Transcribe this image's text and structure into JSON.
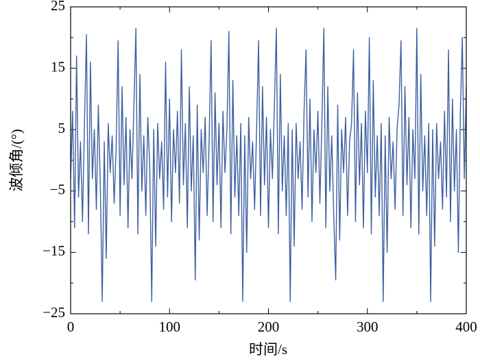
{
  "chart_data": {
    "type": "line",
    "xlabel": "时间/s",
    "ylabel": "波倾角/(°)",
    "x": [
      0,
      2,
      4,
      6,
      8,
      10,
      12,
      14,
      16,
      18,
      20,
      22,
      24,
      26,
      28,
      30,
      32,
      34,
      36,
      38,
      40,
      42,
      44,
      46,
      48,
      50,
      52,
      54,
      56,
      58,
      60,
      62,
      64,
      66,
      68,
      70,
      72,
      74,
      76,
      78,
      80,
      82,
      84,
      86,
      88,
      90,
      92,
      94,
      96,
      98,
      100,
      102,
      104,
      106,
      108,
      110,
      112,
      114,
      116,
      118,
      120,
      122,
      124,
      126,
      128,
      130,
      132,
      134,
      136,
      138,
      140,
      142,
      144,
      146,
      148,
      150,
      152,
      154,
      156,
      158,
      160,
      162,
      164,
      166,
      168,
      170,
      172,
      174,
      176,
      178,
      180,
      182,
      184,
      186,
      188,
      190,
      192,
      194,
      196,
      198,
      200,
      202,
      204,
      206,
      208,
      210,
      212,
      214,
      216,
      218,
      220,
      222,
      224,
      226,
      228,
      230,
      232,
      234,
      236,
      238,
      240,
      242,
      244,
      246,
      248,
      250,
      252,
      254,
      256,
      258,
      260,
      262,
      264,
      266,
      268,
      270,
      272,
      274,
      276,
      278,
      280,
      282,
      284,
      286,
      288,
      290,
      292,
      294,
      296,
      298,
      300,
      302,
      304,
      306,
      308,
      310,
      312,
      314,
      316,
      318,
      320,
      322,
      324,
      326,
      328,
      330,
      332,
      334,
      336,
      338,
      340,
      342,
      344,
      346,
      348,
      350,
      352,
      354,
      356,
      358,
      360,
      362,
      364,
      366,
      368,
      370,
      372,
      374,
      376,
      378,
      380,
      382,
      384,
      386,
      388,
      390,
      392,
      394,
      396,
      398,
      400
    ],
    "series": [
      {
        "name": "波倾角",
        "color": "#3d5fa0",
        "values": [
          -3,
          8,
          -11,
          17,
          -6,
          3,
          -10,
          6,
          20.5,
          -12,
          16,
          -3,
          5,
          -8,
          9,
          -4,
          -23,
          3,
          -16,
          6,
          -2,
          4,
          -7,
          2,
          19.5,
          -9,
          12,
          -4,
          7,
          -11,
          5,
          -3,
          9,
          21.5,
          -12,
          14,
          -5,
          4,
          -9,
          7,
          -1,
          -23,
          5,
          -14,
          6,
          -3,
          3,
          -8,
          16,
          -6,
          10,
          -10,
          5,
          -2,
          8,
          -7,
          18,
          -4,
          6,
          -11,
          12,
          -5,
          4,
          -19.5,
          9,
          -13,
          5,
          -2,
          7,
          -9,
          3,
          19.5,
          -10,
          11,
          -4,
          6,
          -11,
          8,
          -2,
          5,
          21,
          -12,
          13,
          -6,
          4,
          -9,
          6,
          -23,
          4,
          -15,
          7,
          -3,
          3,
          -8,
          5,
          19.5,
          -9,
          12,
          -4,
          7,
          -11,
          5,
          -3,
          9,
          21.5,
          -12,
          14,
          -5,
          4,
          -9,
          6,
          -23,
          5,
          -14,
          6,
          -3,
          3,
          -8,
          8,
          18,
          -6,
          10,
          -10,
          5,
          -2,
          8,
          -7,
          6,
          21.5,
          -11,
          12,
          -5,
          4,
          -9,
          -19.5,
          9,
          -13,
          5,
          -2,
          7,
          -9,
          3,
          6,
          18,
          -10,
          11,
          -4,
          6,
          -11,
          8,
          -2,
          20,
          -12,
          13,
          -6,
          4,
          -9,
          6,
          -23,
          4,
          -15,
          7,
          -3,
          3,
          -8,
          5,
          9,
          19.5,
          -9,
          12,
          -4,
          7,
          -11,
          5,
          -3,
          21.5,
          -12,
          14,
          -5,
          4,
          -9,
          6,
          -23,
          5,
          -14,
          6,
          -3,
          3,
          -8,
          8,
          -6,
          18,
          -10,
          10,
          -5,
          5,
          -15,
          8,
          20,
          -3,
          12
        ]
      }
    ],
    "xlim": [
      0,
      400
    ],
    "xticks": [
      0,
      100,
      200,
      300,
      400
    ],
    "xminorticks": [
      50,
      150,
      250,
      350
    ],
    "ylim": [
      -25,
      25
    ],
    "yticks": [
      {
        "value": -25,
        "label": "−25"
      },
      {
        "value": -15,
        "label": "−15"
      },
      {
        "value": -5,
        "label": "−5"
      },
      5,
      15,
      25
    ],
    "yminorticks": [
      -20,
      -10,
      0,
      10,
      20
    ]
  }
}
